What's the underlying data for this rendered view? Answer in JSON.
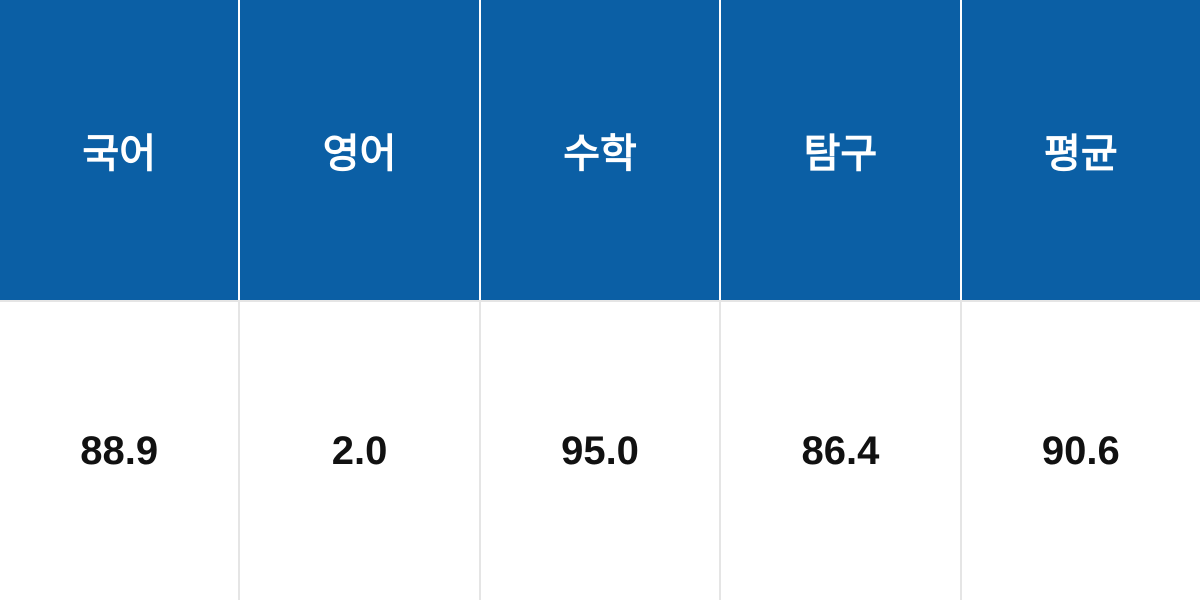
{
  "table": {
    "type": "table",
    "columns": [
      "국어",
      "영어",
      "수학",
      "탐구",
      "평균"
    ],
    "rows": [
      [
        "88.9",
        "2.0",
        "95.0",
        "86.4",
        "90.6"
      ]
    ],
    "header_background_color": "#0b5fa5",
    "header_text_color": "#ffffff",
    "header_border_color": "#ffffff",
    "data_background_color": "#ffffff",
    "data_text_color": "#111111",
    "data_border_color": "#e5e5e5",
    "header_fontsize": 40,
    "data_fontsize": 40,
    "font_weight": 700
  }
}
